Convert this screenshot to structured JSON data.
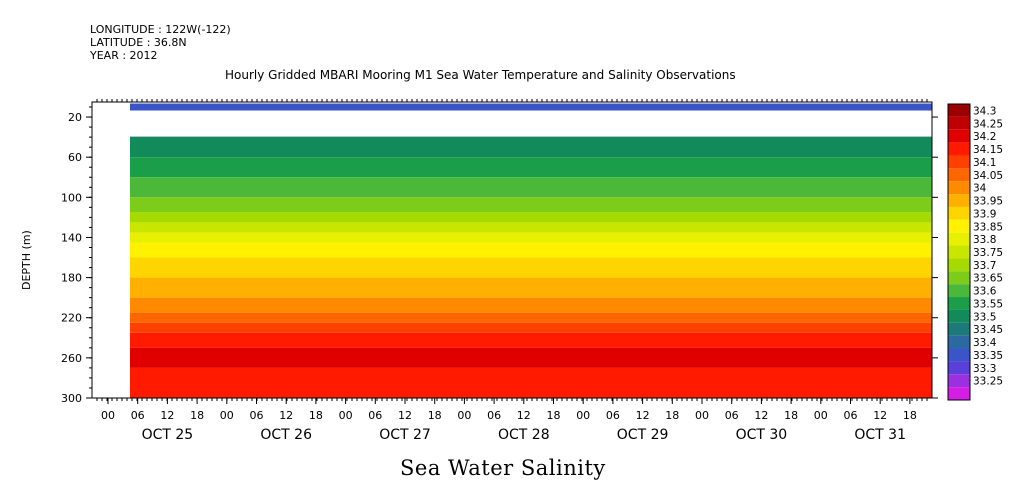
{
  "meta": {
    "longitude": "LONGITUDE : 122W(-122)",
    "latitude": "LATITUDE : 36.8N",
    "year": "YEAR : 2012"
  },
  "chart_data": {
    "type": "heatmap",
    "title": "Hourly Gridded MBARI Mooring M1 Sea Water Temperature and Salinity Observations",
    "bottom_title": "Sea Water Salinity",
    "ylabel": "DEPTH (m)",
    "xlabel": "",
    "ylim": [
      300,
      5
    ],
    "y_ticks": [
      20,
      60,
      100,
      140,
      180,
      220,
      260,
      300
    ],
    "x_hour_ticks": [
      "00",
      "06",
      "12",
      "18",
      "00",
      "06",
      "12",
      "18",
      "00",
      "06",
      "12",
      "18",
      "00",
      "06",
      "12",
      "18",
      "00",
      "06",
      "12",
      "18",
      "00",
      "06",
      "12",
      "18",
      "00",
      "06",
      "12",
      "18"
    ],
    "x_day_labels": [
      "OCT 25",
      "OCT 26",
      "OCT 27",
      "OCT 28",
      "OCT 29",
      "OCT 30",
      "OCT 31"
    ],
    "colorbar_levels": [
      "34.3",
      "34.25",
      "34.2",
      "34.15",
      "34.1",
      "34.05",
      "34",
      "33.95",
      "33.9",
      "33.85",
      "33.8",
      "33.75",
      "33.7",
      "33.65",
      "33.6",
      "33.55",
      "33.5",
      "33.45",
      "33.4",
      "33.35",
      "33.3",
      "33.25"
    ],
    "colorbar_colors": [
      "#9a0000",
      "#c00000",
      "#e00000",
      "#ff1a00",
      "#ff4000",
      "#ff6600",
      "#ff8a00",
      "#ffb000",
      "#ffd500",
      "#fff200",
      "#e6f000",
      "#c8e600",
      "#a6da00",
      "#7dcc1a",
      "#4cb83a",
      "#1a9e4a",
      "#128a5a",
      "#1c7a7a",
      "#2a6aa0",
      "#3a55c8",
      "#5a40d8",
      "#9a30e0",
      "#d41ee6"
    ],
    "surface_band": {
      "depth": 10,
      "salinity": 33.4
    },
    "bands": [
      {
        "depth": 40,
        "salinity": 33.5
      },
      {
        "depth": 60,
        "salinity": 33.55
      },
      {
        "depth": 80,
        "salinity": 33.6
      },
      {
        "depth": 100,
        "salinity": 33.65
      },
      {
        "depth": 115,
        "salinity": 33.7
      },
      {
        "depth": 125,
        "salinity": 33.75
      },
      {
        "depth": 135,
        "salinity": 33.8
      },
      {
        "depth": 145,
        "salinity": 33.85
      },
      {
        "depth": 160,
        "salinity": 33.9
      },
      {
        "depth": 180,
        "salinity": 33.95
      },
      {
        "depth": 200,
        "salinity": 34.0
      },
      {
        "depth": 215,
        "salinity": 34.05
      },
      {
        "depth": 225,
        "salinity": 34.1
      },
      {
        "depth": 235,
        "salinity": 34.15
      },
      {
        "depth": 250,
        "salinity": 34.2
      },
      {
        "depth": 270,
        "salinity": 34.25
      },
      {
        "depth": 300,
        "salinity": 34.2
      }
    ]
  }
}
